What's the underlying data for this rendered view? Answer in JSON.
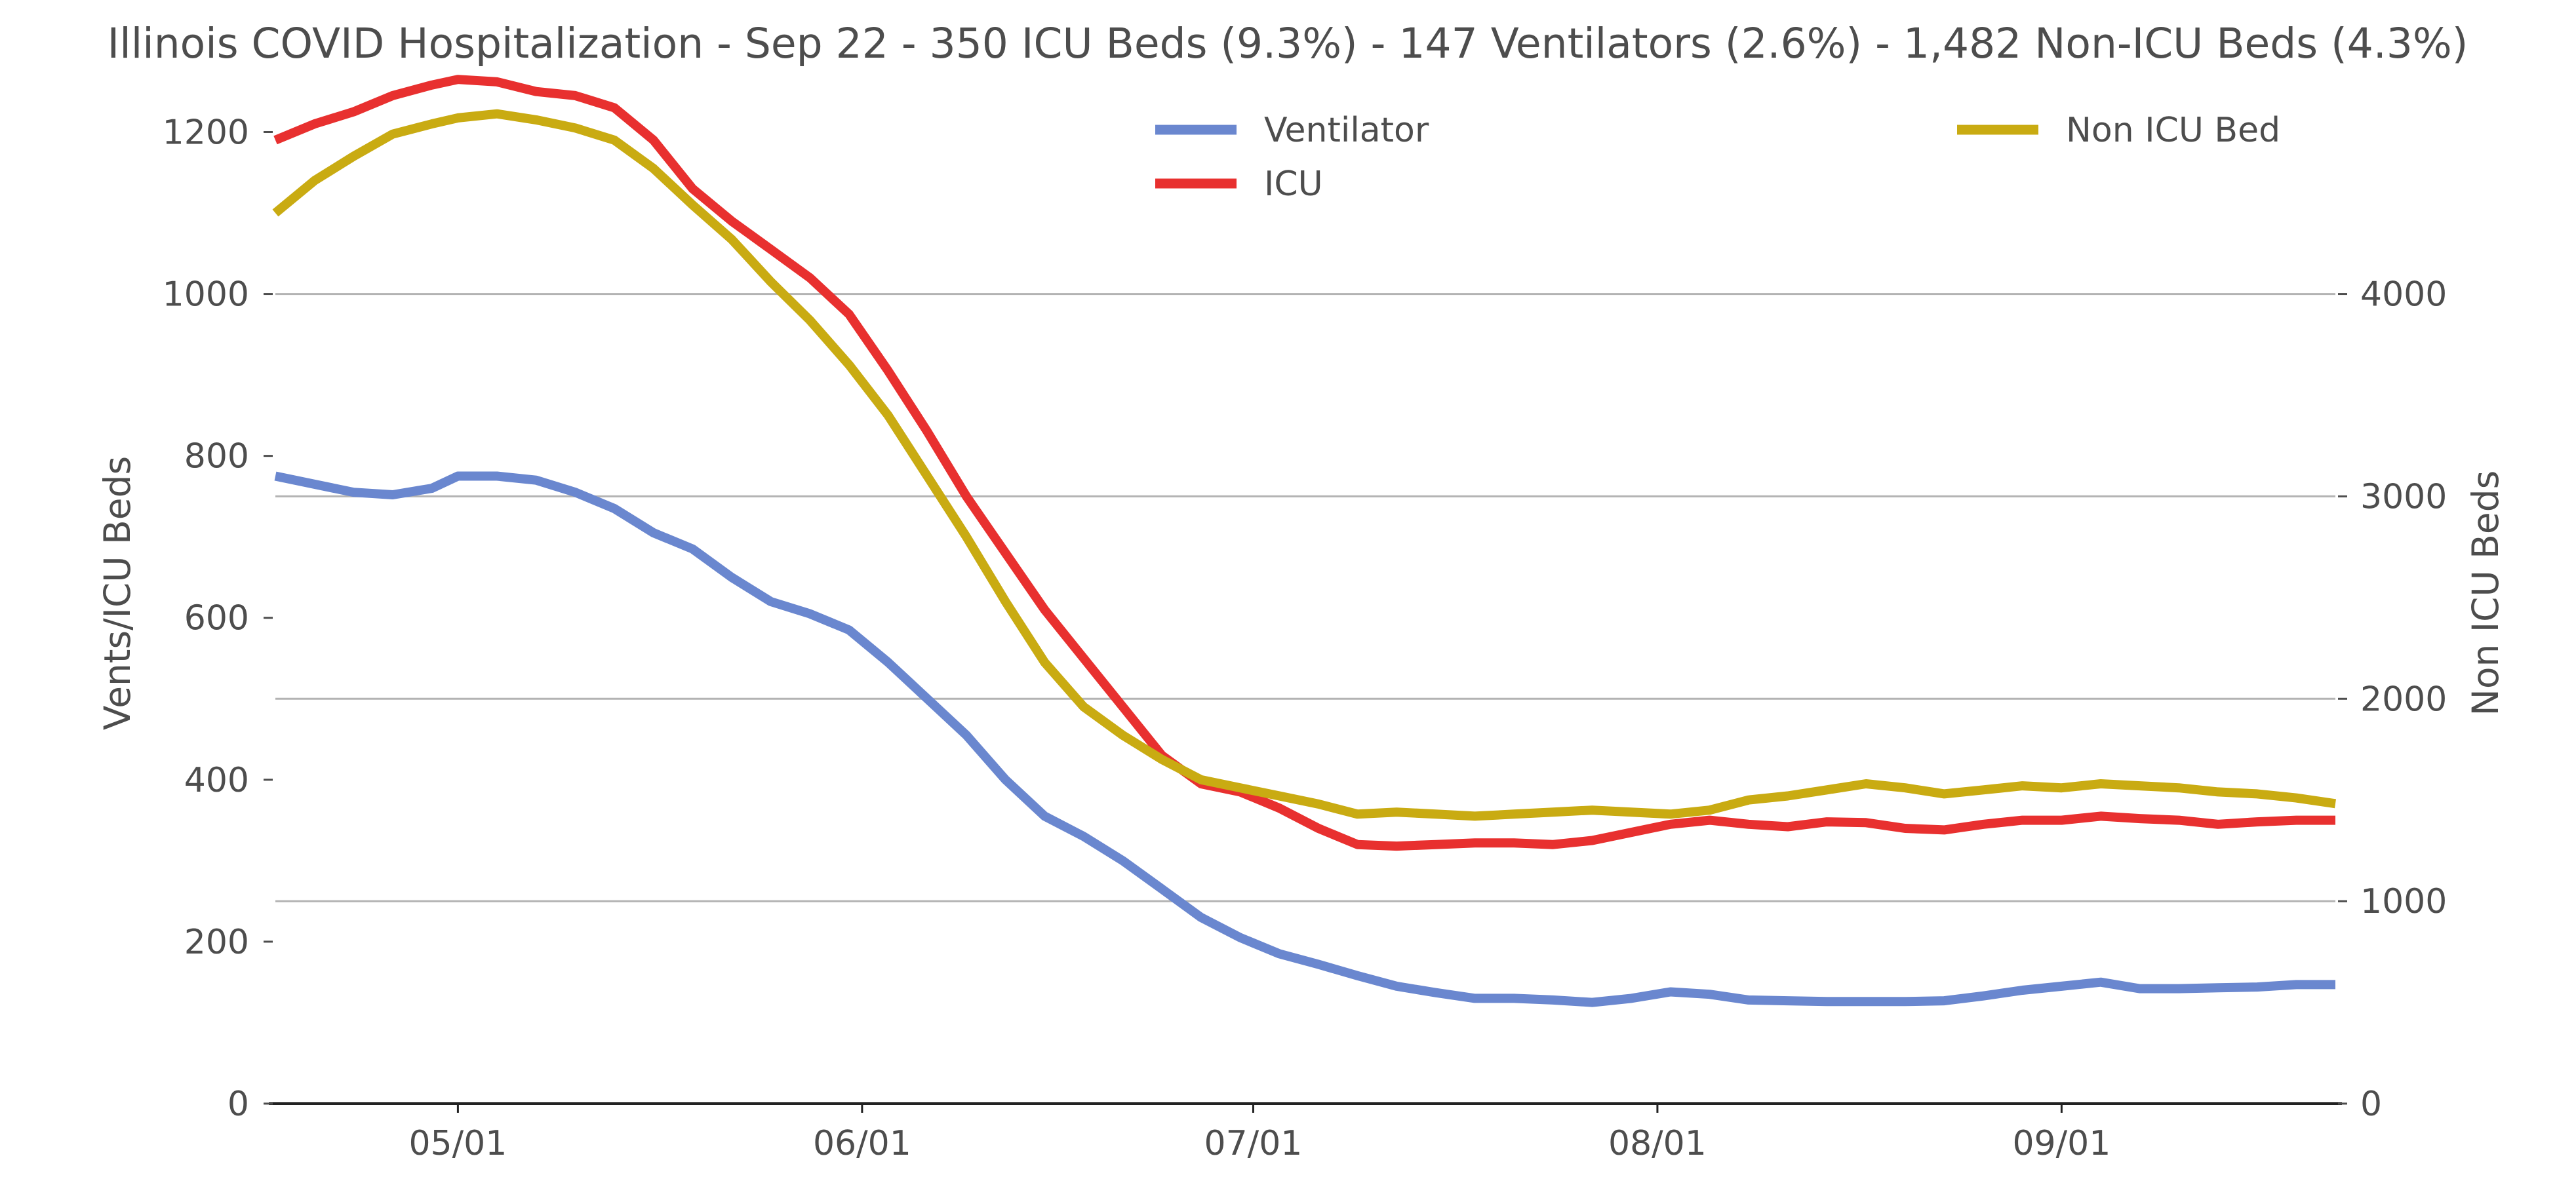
{
  "chart_data": {
    "type": "line",
    "title": "Illinois COVID Hospitalization - Sep 22 - 350 ICU Beds (9.3%) - 147 Ventilators (2.6%) - 1,482 Non-ICU Beds (4.3%)",
    "ylabel": "Vents/ICU Beds",
    "y2label": "Non ICU Beds",
    "xlim": [
      "2020-04-17",
      "2020-09-22"
    ],
    "ylim": [
      0,
      1270
    ],
    "y2lim": [
      0,
      5080
    ],
    "y_ticks": [
      0,
      200,
      400,
      600,
      800,
      1000,
      1200
    ],
    "y2_ticks": [
      0,
      1000,
      2000,
      3000,
      4000
    ],
    "x_ticks": [
      {
        "date": "2020-05-01",
        "label": "05/01"
      },
      {
        "date": "2020-06-01",
        "label": "06/01"
      },
      {
        "date": "2020-07-01",
        "label": "07/01"
      },
      {
        "date": "2020-08-01",
        "label": "08/01"
      },
      {
        "date": "2020-09-01",
        "label": "09/01"
      }
    ],
    "grid": "horizontal, right axis",
    "legend": {
      "placement": "top-center"
    },
    "series": [
      {
        "name": "Ventilator",
        "axis": "left",
        "color": "#6a87cf",
        "points": [
          [
            "2020-04-17",
            775
          ],
          [
            "2020-04-20",
            765
          ],
          [
            "2020-04-23",
            755
          ],
          [
            "2020-04-26",
            752
          ],
          [
            "2020-04-29",
            760
          ],
          [
            "2020-05-01",
            775
          ],
          [
            "2020-05-04",
            775
          ],
          [
            "2020-05-07",
            770
          ],
          [
            "2020-05-10",
            755
          ],
          [
            "2020-05-13",
            735
          ],
          [
            "2020-05-16",
            705
          ],
          [
            "2020-05-19",
            685
          ],
          [
            "2020-05-22",
            650
          ],
          [
            "2020-05-25",
            620
          ],
          [
            "2020-05-28",
            605
          ],
          [
            "2020-05-31",
            585
          ],
          [
            "2020-06-03",
            545
          ],
          [
            "2020-06-06",
            500
          ],
          [
            "2020-06-09",
            455
          ],
          [
            "2020-06-12",
            400
          ],
          [
            "2020-06-15",
            355
          ],
          [
            "2020-06-18",
            330
          ],
          [
            "2020-06-21",
            300
          ],
          [
            "2020-06-24",
            265
          ],
          [
            "2020-06-27",
            230
          ],
          [
            "2020-06-30",
            205
          ],
          [
            "2020-07-03",
            185
          ],
          [
            "2020-07-06",
            172
          ],
          [
            "2020-07-09",
            158
          ],
          [
            "2020-07-12",
            145
          ],
          [
            "2020-07-15",
            137
          ],
          [
            "2020-07-18",
            130
          ],
          [
            "2020-07-21",
            130
          ],
          [
            "2020-07-24",
            128
          ],
          [
            "2020-07-27",
            125
          ],
          [
            "2020-07-30",
            130
          ],
          [
            "2020-08-02",
            138
          ],
          [
            "2020-08-05",
            135
          ],
          [
            "2020-08-08",
            128
          ],
          [
            "2020-08-11",
            127
          ],
          [
            "2020-08-14",
            126
          ],
          [
            "2020-08-17",
            126
          ],
          [
            "2020-08-20",
            126
          ],
          [
            "2020-08-23",
            127
          ],
          [
            "2020-08-26",
            133
          ],
          [
            "2020-08-29",
            140
          ],
          [
            "2020-09-01",
            145
          ],
          [
            "2020-09-04",
            150
          ],
          [
            "2020-09-07",
            142
          ],
          [
            "2020-09-10",
            142
          ],
          [
            "2020-09-13",
            143
          ],
          [
            "2020-09-16",
            144
          ],
          [
            "2020-09-19",
            147
          ],
          [
            "2020-09-22",
            147
          ]
        ]
      },
      {
        "name": "ICU",
        "axis": "left",
        "color": "#e8302f",
        "points": [
          [
            "2020-04-17",
            1190
          ],
          [
            "2020-04-20",
            1210
          ],
          [
            "2020-04-23",
            1225
          ],
          [
            "2020-04-26",
            1245
          ],
          [
            "2020-04-29",
            1258
          ],
          [
            "2020-05-01",
            1265
          ],
          [
            "2020-05-04",
            1262
          ],
          [
            "2020-05-07",
            1250
          ],
          [
            "2020-05-10",
            1245
          ],
          [
            "2020-05-13",
            1230
          ],
          [
            "2020-05-16",
            1190
          ],
          [
            "2020-05-19",
            1130
          ],
          [
            "2020-05-22",
            1090
          ],
          [
            "2020-05-25",
            1055
          ],
          [
            "2020-05-28",
            1020
          ],
          [
            "2020-05-31",
            975
          ],
          [
            "2020-06-03",
            905
          ],
          [
            "2020-06-06",
            830
          ],
          [
            "2020-06-09",
            750
          ],
          [
            "2020-06-12",
            680
          ],
          [
            "2020-06-15",
            610
          ],
          [
            "2020-06-18",
            550
          ],
          [
            "2020-06-21",
            490
          ],
          [
            "2020-06-24",
            430
          ],
          [
            "2020-06-27",
            395
          ],
          [
            "2020-06-30",
            385
          ],
          [
            "2020-07-03",
            365
          ],
          [
            "2020-07-06",
            340
          ],
          [
            "2020-07-09",
            320
          ],
          [
            "2020-07-12",
            318
          ],
          [
            "2020-07-15",
            320
          ],
          [
            "2020-07-18",
            322
          ],
          [
            "2020-07-21",
            322
          ],
          [
            "2020-07-24",
            320
          ],
          [
            "2020-07-27",
            325
          ],
          [
            "2020-07-30",
            335
          ],
          [
            "2020-08-02",
            345
          ],
          [
            "2020-08-05",
            350
          ],
          [
            "2020-08-08",
            345
          ],
          [
            "2020-08-11",
            342
          ],
          [
            "2020-08-14",
            348
          ],
          [
            "2020-08-17",
            347
          ],
          [
            "2020-08-20",
            340
          ],
          [
            "2020-08-23",
            338
          ],
          [
            "2020-08-26",
            345
          ],
          [
            "2020-08-29",
            350
          ],
          [
            "2020-09-01",
            350
          ],
          [
            "2020-09-04",
            355
          ],
          [
            "2020-09-07",
            352
          ],
          [
            "2020-09-10",
            350
          ],
          [
            "2020-09-13",
            345
          ],
          [
            "2020-09-16",
            348
          ],
          [
            "2020-09-19",
            350
          ],
          [
            "2020-09-22",
            350
          ]
        ]
      },
      {
        "name": "Non ICU Bed",
        "axis": "right",
        "color": "#c9ab12",
        "points": [
          [
            "2020-04-17",
            4400
          ],
          [
            "2020-04-20",
            4560
          ],
          [
            "2020-04-23",
            4680
          ],
          [
            "2020-04-26",
            4790
          ],
          [
            "2020-04-29",
            4840
          ],
          [
            "2020-05-01",
            4870
          ],
          [
            "2020-05-04",
            4890
          ],
          [
            "2020-05-07",
            4860
          ],
          [
            "2020-05-10",
            4820
          ],
          [
            "2020-05-13",
            4760
          ],
          [
            "2020-05-16",
            4620
          ],
          [
            "2020-05-19",
            4440
          ],
          [
            "2020-05-22",
            4270
          ],
          [
            "2020-05-25",
            4060
          ],
          [
            "2020-05-28",
            3870
          ],
          [
            "2020-05-31",
            3650
          ],
          [
            "2020-06-03",
            3400
          ],
          [
            "2020-06-06",
            3100
          ],
          [
            "2020-06-09",
            2800
          ],
          [
            "2020-06-12",
            2480
          ],
          [
            "2020-06-15",
            2180
          ],
          [
            "2020-06-18",
            1960
          ],
          [
            "2020-06-21",
            1820
          ],
          [
            "2020-06-24",
            1700
          ],
          [
            "2020-06-27",
            1600
          ],
          [
            "2020-06-30",
            1560
          ],
          [
            "2020-07-03",
            1520
          ],
          [
            "2020-07-06",
            1480
          ],
          [
            "2020-07-09",
            1430
          ],
          [
            "2020-07-12",
            1440
          ],
          [
            "2020-07-15",
            1430
          ],
          [
            "2020-07-18",
            1420
          ],
          [
            "2020-07-21",
            1430
          ],
          [
            "2020-07-24",
            1440
          ],
          [
            "2020-07-27",
            1450
          ],
          [
            "2020-07-30",
            1440
          ],
          [
            "2020-08-02",
            1430
          ],
          [
            "2020-08-05",
            1450
          ],
          [
            "2020-08-08",
            1500
          ],
          [
            "2020-08-11",
            1520
          ],
          [
            "2020-08-14",
            1550
          ],
          [
            "2020-08-17",
            1580
          ],
          [
            "2020-08-20",
            1560
          ],
          [
            "2020-08-23",
            1530
          ],
          [
            "2020-08-26",
            1550
          ],
          [
            "2020-08-29",
            1570
          ],
          [
            "2020-09-01",
            1560
          ],
          [
            "2020-09-04",
            1580
          ],
          [
            "2020-09-07",
            1570
          ],
          [
            "2020-09-10",
            1560
          ],
          [
            "2020-09-13",
            1540
          ],
          [
            "2020-09-16",
            1530
          ],
          [
            "2020-09-19",
            1510
          ],
          [
            "2020-09-22",
            1482
          ]
        ]
      }
    ]
  }
}
